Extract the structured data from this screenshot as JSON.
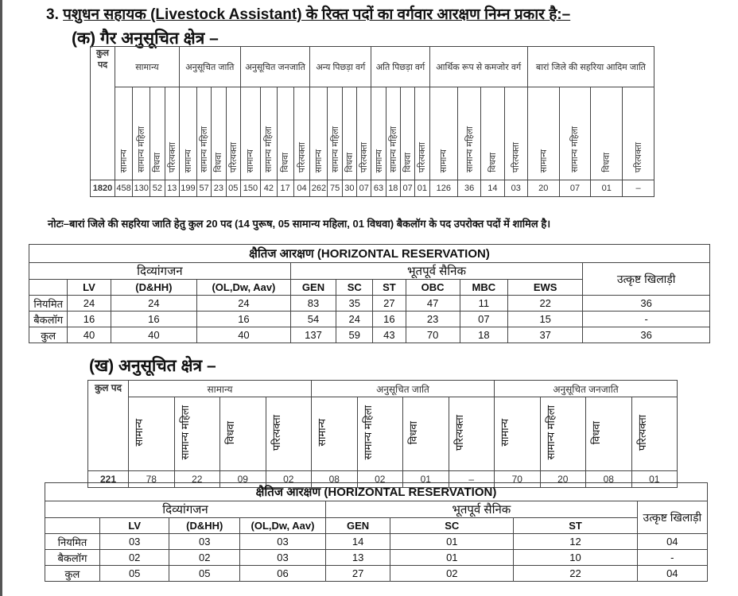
{
  "heading": {
    "number": "3.",
    "title": "पशुधन सहायक (Livestock Assistant) के रिक्त पदों का वर्गवार आरक्षण निम्न प्रकार है:–"
  },
  "section_a": {
    "title": "(क) गैर अनुसूचित क्षेत्र –"
  },
  "table1": {
    "total_label": "कुल पद",
    "groups": [
      "सामान्य",
      "अनुसूचित जाति",
      "अनुसूचित जनजाति",
      "अन्य पिछड़ा वर्ग",
      "अति पिछड़ा वर्ग",
      "आर्थिक रूप से कमजोर वर्ग",
      "बारां जिले की सहरिया आदिम जाति"
    ],
    "subheaders": [
      "सामान्य",
      "सामान्य महिला",
      "विधवा",
      "परित्यक्ता"
    ],
    "total": "1820",
    "values": [
      "458",
      "130",
      "52",
      "13",
      "199",
      "57",
      "23",
      "05",
      "150",
      "42",
      "17",
      "04",
      "262",
      "75",
      "30",
      "07",
      "63",
      "18",
      "07",
      "01",
      "126",
      "36",
      "14",
      "03",
      "20",
      "07",
      "01",
      "–"
    ]
  },
  "note": "नोटः–बारां जिले की सहरिया जाति हेतु कुल 20 पद (14 पुरूष, 05 सामान्य महिला, 01 विधवा) बैकलॉग के पद उपरोक्त पदों में शामिल है।",
  "hr1": {
    "title": "क्षैतिज आरक्षण (HORIZONTAL RESERVATION)",
    "groups": [
      "दिव्यांगजन",
      "भूतपूर्व सैनिक",
      "उत्कृष्ट खिलाड़ी"
    ],
    "columns": [
      "LV",
      "(D&HH)",
      "(OL,Dw, Aav)",
      "GEN",
      "SC",
      "ST",
      "OBC",
      "MBC",
      "EWS"
    ],
    "rows": [
      {
        "label": "नियमित",
        "values": [
          "24",
          "24",
          "24",
          "83",
          "35",
          "27",
          "47",
          "11",
          "22",
          "36"
        ]
      },
      {
        "label": "बैकलॉग",
        "values": [
          "16",
          "16",
          "16",
          "54",
          "24",
          "16",
          "23",
          "07",
          "15",
          "-"
        ]
      },
      {
        "label": "कुल",
        "values": [
          "40",
          "40",
          "40",
          "137",
          "59",
          "43",
          "70",
          "18",
          "37",
          "36"
        ]
      }
    ]
  },
  "section_b": {
    "title": "(ख) अनुसूचित क्षेत्र –"
  },
  "table2": {
    "total_label": "कुल पद",
    "groups": [
      "सामान्य",
      "अनुसूचित जाति",
      "अनुसूचित जनजाति"
    ],
    "subheaders": [
      "सामान्य",
      "सामान्य महिला",
      "विधवा",
      "परित्यक्ता"
    ],
    "total": "221",
    "values": [
      "78",
      "22",
      "09",
      "02",
      "08",
      "02",
      "01",
      "–",
      "70",
      "20",
      "08",
      "01"
    ]
  },
  "hr2": {
    "title": "क्षैतिज आरक्षण (HORIZONTAL RESERVATION)",
    "groups": [
      "दिव्यांगजन",
      "भूतपूर्व सैनिक",
      "उत्कृष्ट खिलाड़ी"
    ],
    "columns": [
      "LV",
      "(D&HH)",
      "(OL,Dw, Aav)",
      "GEN",
      "SC",
      "ST"
    ],
    "rows": [
      {
        "label": "नियमित",
        "values": [
          "03",
          "03",
          "03",
          "14",
          "01",
          "12",
          "04"
        ]
      },
      {
        "label": "बैकलॉग",
        "values": [
          "02",
          "02",
          "03",
          "13",
          "01",
          "10",
          "-"
        ]
      },
      {
        "label": "कुल",
        "values": [
          "05",
          "05",
          "06",
          "27",
          "02",
          "22",
          "04"
        ]
      }
    ]
  }
}
